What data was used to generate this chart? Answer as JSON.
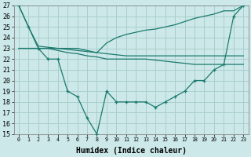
{
  "x": [
    0,
    1,
    2,
    3,
    4,
    5,
    6,
    7,
    8,
    9,
    10,
    11,
    12,
    13,
    14,
    15,
    16,
    17,
    18,
    19,
    20,
    21,
    22,
    23
  ],
  "line_main": [
    27,
    25,
    23,
    22,
    22,
    19,
    18.5,
    16.5,
    15,
    19,
    18,
    18,
    18,
    18,
    17.5,
    18,
    18.5,
    19,
    20,
    20,
    21,
    21.5,
    26,
    27
  ],
  "line_upper": [
    27,
    25,
    23.2,
    23.1,
    23.0,
    22.9,
    22.8,
    22.7,
    22.6,
    23.5,
    24.0,
    24.3,
    24.5,
    24.7,
    24.8,
    25.0,
    25.2,
    25.5,
    25.8,
    26.0,
    26.2,
    26.5,
    26.5,
    27
  ],
  "line_mid1": [
    23,
    23,
    23,
    23,
    23,
    23,
    23,
    22.8,
    22.6,
    22.5,
    22.4,
    22.3,
    22.3,
    22.3,
    22.3,
    22.3,
    22.3,
    22.3,
    22.3,
    22.3,
    22.3,
    22.3,
    22.3,
    22.3
  ],
  "line_mid2": [
    23,
    23,
    23,
    23,
    22.8,
    22.6,
    22.5,
    22.3,
    22.2,
    22.0,
    22.0,
    22.0,
    22.0,
    22.0,
    21.9,
    21.8,
    21.7,
    21.6,
    21.5,
    21.5,
    21.5,
    21.5,
    21.5,
    21.5
  ],
  "color": "#1a7a6e",
  "bg_color": "#cce8e8",
  "grid_color": "#aacece",
  "xlabel": "Humidex (Indice chaleur)",
  "xlim": [
    -0.5,
    23.5
  ],
  "ylim": [
    15,
    27
  ],
  "yticks": [
    15,
    16,
    17,
    18,
    19,
    20,
    21,
    22,
    23,
    24,
    25,
    26,
    27
  ],
  "xtick_labels": [
    "0",
    "1",
    "2",
    "3",
    "4",
    "5",
    "6",
    "7",
    "8",
    "9",
    "10",
    "11",
    "12",
    "13",
    "14",
    "15",
    "16",
    "17",
    "18",
    "19",
    "20",
    "21",
    "22",
    "23"
  ]
}
